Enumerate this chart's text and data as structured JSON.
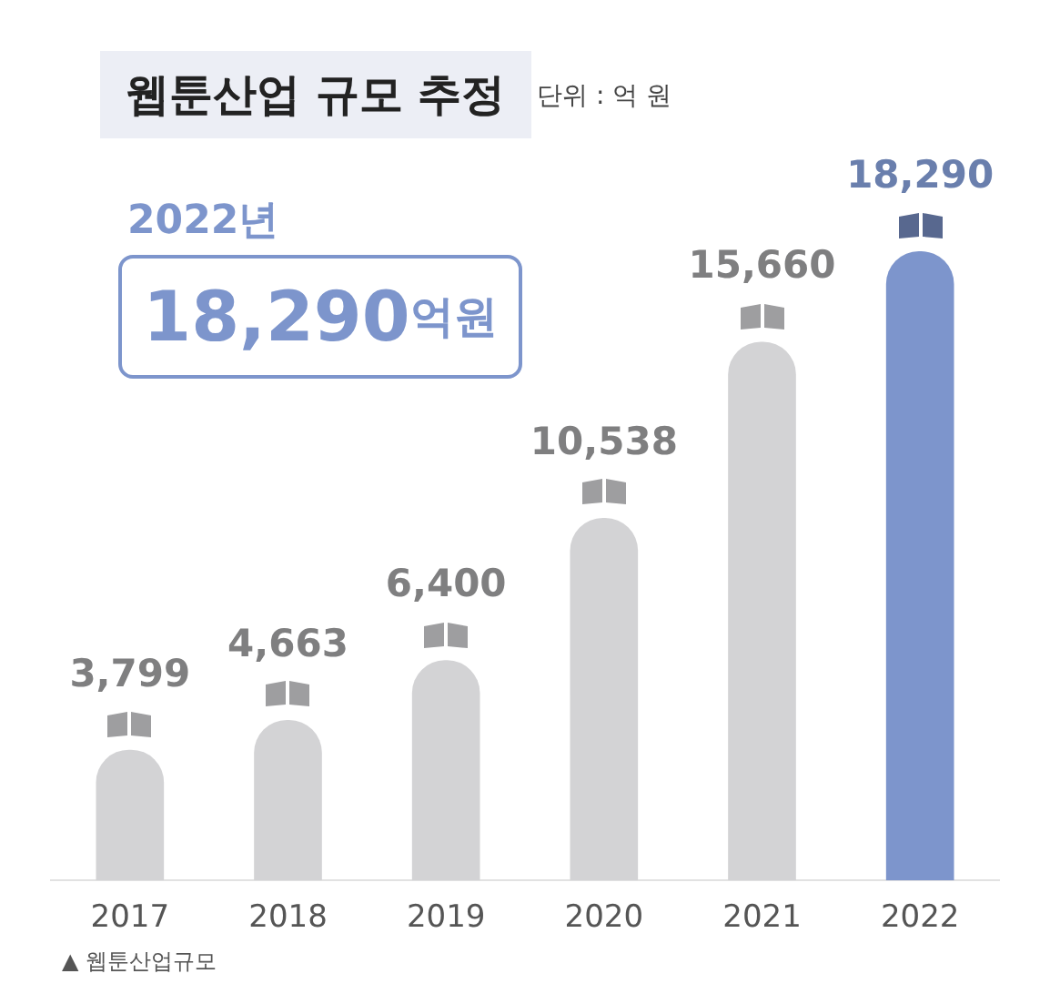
{
  "chart_data": {
    "type": "bar",
    "title": "웹툰산업 규모 추정",
    "subtitle": "단위 : 억 원",
    "categories": [
      "2017",
      "2018",
      "2019",
      "2020",
      "2021",
      "2022"
    ],
    "values": [
      3799,
      4663,
      6400,
      10538,
      15660,
      18290
    ],
    "colors": [
      "#d3d3d5",
      "#d3d3d5",
      "#d3d3d5",
      "#d3d3d5",
      "#d3d3d5",
      "#7d95cc"
    ],
    "value_labels": [
      "3,799",
      "4,663",
      "6,400",
      "10,538",
      "15,660",
      "18,290"
    ],
    "annotations": [
      "2022년",
      "18,290억원",
      "▲ 웹툰산업규모"
    ],
    "grid": false,
    "legend": false,
    "tick_labels": "x"
  }
}
